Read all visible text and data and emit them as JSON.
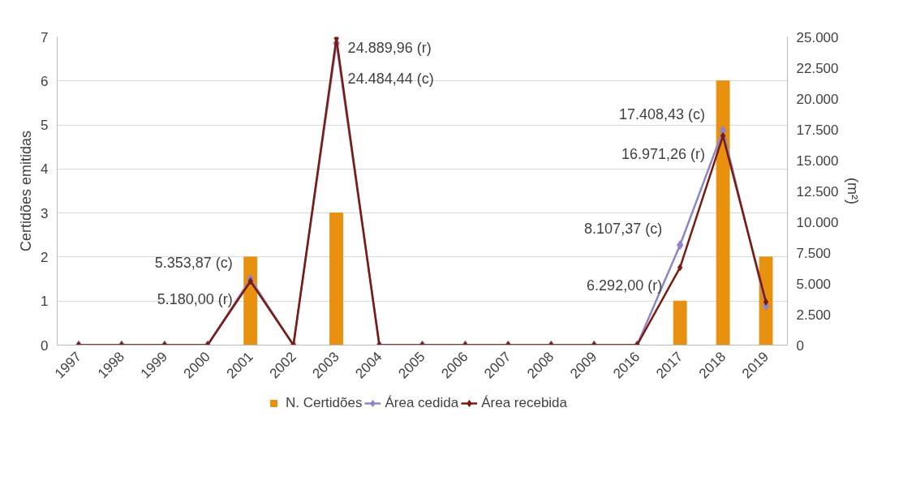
{
  "chart_data": {
    "type": "bar",
    "categories": [
      "1997",
      "1998",
      "1999",
      "2000",
      "2001",
      "2002",
      "2003",
      "2004",
      "2005",
      "2006",
      "2007",
      "2008",
      "2009",
      "2016",
      "2017",
      "2018",
      "2019"
    ],
    "ylabel": "Certidões emitidas",
    "y2label": "(m²)",
    "ylim": [
      0,
      7
    ],
    "yticks": [
      0,
      1,
      2,
      3,
      4,
      5,
      6,
      7
    ],
    "y2lim": [
      0,
      25000
    ],
    "y2ticks": [
      0,
      {
        "value": 2500,
        "label": "2.500"
      },
      {
        "value": 5000,
        "label": "5.000"
      },
      {
        "value": 7500,
        "label": "7.500"
      },
      {
        "value": 10000,
        "label": "10.000"
      },
      {
        "value": 12500,
        "label": "12.500"
      },
      {
        "value": 15000,
        "label": "15.000"
      },
      {
        "value": 17500,
        "label": "17.500"
      },
      {
        "value": 20000,
        "label": "20.000"
      },
      {
        "value": 22500,
        "label": "22.500"
      },
      {
        "value": 25000,
        "label": "25.000"
      }
    ],
    "grid": "y",
    "legend": "bottom",
    "marker": "diamond",
    "line_style": "solid",
    "series": [
      {
        "name": "N. Certidões",
        "color": "#e8900f",
        "values": [
          0,
          0,
          0,
          0,
          2,
          0,
          3,
          0,
          0,
          0,
          0,
          0,
          0,
          0,
          1,
          6,
          2
        ]
      },
      {
        "name": "Área cedida",
        "type": "line",
        "axis": "y2",
        "color": "#8e84c8",
        "values": [
          0,
          0,
          0,
          0,
          5353.87,
          0,
          24484.44,
          0,
          0,
          0,
          0,
          0,
          0,
          0,
          8107.37,
          17408.43,
          3200
        ],
        "value_labels": [
          null,
          null,
          null,
          null,
          "5.353,87 (c)",
          null,
          "24.484,44 (c)",
          null,
          null,
          null,
          null,
          null,
          null,
          null,
          "8.107,37 (c)",
          "17.408,43 (c)",
          null
        ]
      },
      {
        "name": "Área recebida",
        "type": "line",
        "axis": "y2",
        "color": "#7b1a0e",
        "values": [
          0,
          0,
          0,
          0,
          5180.0,
          0,
          24889.96,
          0,
          0,
          0,
          0,
          0,
          0,
          0,
          6292.0,
          16971.26,
          3500
        ],
        "value_labels": [
          null,
          null,
          null,
          null,
          "5.180,00 (r)",
          null,
          "24.889,96 (r)",
          null,
          null,
          null,
          null,
          null,
          null,
          null,
          "6.292,00 (r)",
          "16.971,26 (r)",
          null
        ]
      }
    ]
  }
}
